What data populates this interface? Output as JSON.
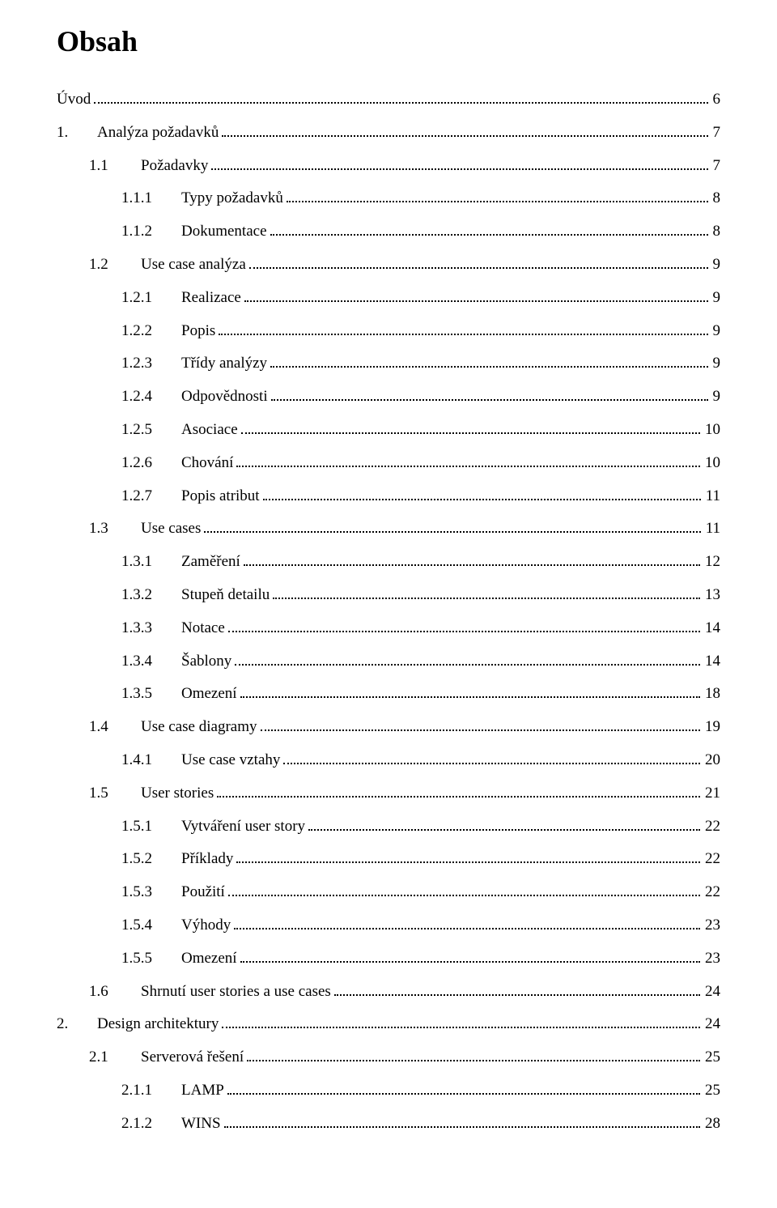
{
  "title": "Obsah",
  "entries": [
    {
      "level": 0,
      "num": "",
      "text": "Úvod",
      "page": "6"
    },
    {
      "level": 1,
      "num": "1.",
      "text": "Analýza požadavků",
      "page": "7"
    },
    {
      "level": 2,
      "num": "1.1",
      "text": "Požadavky",
      "page": "7"
    },
    {
      "level": 3,
      "num": "1.1.1",
      "text": "Typy požadavků",
      "page": "8"
    },
    {
      "level": 3,
      "num": "1.1.2",
      "text": "Dokumentace",
      "page": "8"
    },
    {
      "level": 2,
      "num": "1.2",
      "text": "Use case analýza",
      "page": "9"
    },
    {
      "level": 3,
      "num": "1.2.1",
      "text": "Realizace",
      "page": "9"
    },
    {
      "level": 3,
      "num": "1.2.2",
      "text": "Popis",
      "page": "9"
    },
    {
      "level": 3,
      "num": "1.2.3",
      "text": "Třídy analýzy",
      "page": "9"
    },
    {
      "level": 3,
      "num": "1.2.4",
      "text": "Odpovědnosti",
      "page": "9"
    },
    {
      "level": 3,
      "num": "1.2.5",
      "text": "Asociace",
      "page": "10"
    },
    {
      "level": 3,
      "num": "1.2.6",
      "text": "Chování",
      "page": "10"
    },
    {
      "level": 3,
      "num": "1.2.7",
      "text": "Popis atribut",
      "page": "11"
    },
    {
      "level": 2,
      "num": "1.3",
      "text": "Use cases",
      "page": "11"
    },
    {
      "level": 3,
      "num": "1.3.1",
      "text": "Zaměření",
      "page": "12"
    },
    {
      "level": 3,
      "num": "1.3.2",
      "text": "Stupeň detailu",
      "page": "13"
    },
    {
      "level": 3,
      "num": "1.3.3",
      "text": "Notace",
      "page": "14"
    },
    {
      "level": 3,
      "num": "1.3.4",
      "text": "Šablony",
      "page": "14"
    },
    {
      "level": 3,
      "num": "1.3.5",
      "text": "Omezení",
      "page": "18"
    },
    {
      "level": 2,
      "num": "1.4",
      "text": "Use case diagramy",
      "page": "19"
    },
    {
      "level": 3,
      "num": "1.4.1",
      "text": "Use case vztahy",
      "page": "20"
    },
    {
      "level": 2,
      "num": "1.5",
      "text": "User stories",
      "page": "21"
    },
    {
      "level": 3,
      "num": "1.5.1",
      "text": "Vytváření user story",
      "page": "22"
    },
    {
      "level": 3,
      "num": "1.5.2",
      "text": "Příklady",
      "page": "22"
    },
    {
      "level": 3,
      "num": "1.5.3",
      "text": "Použití",
      "page": "22"
    },
    {
      "level": 3,
      "num": "1.5.4",
      "text": "Výhody",
      "page": "23"
    },
    {
      "level": 3,
      "num": "1.5.5",
      "text": "Omezení",
      "page": "23"
    },
    {
      "level": 2,
      "num": "1.6",
      "text": "Shrnutí user stories a use cases",
      "page": "24"
    },
    {
      "level": 1,
      "num": "2.",
      "text": "Design architektury",
      "page": "24"
    },
    {
      "level": 2,
      "num": "2.1",
      "text": "Serverová řešení",
      "page": "25"
    },
    {
      "level": 3,
      "num": "2.1.1",
      "text": "LAMP",
      "page": "25"
    },
    {
      "level": 3,
      "num": "2.1.2",
      "text": "WINS",
      "page": "28"
    }
  ]
}
